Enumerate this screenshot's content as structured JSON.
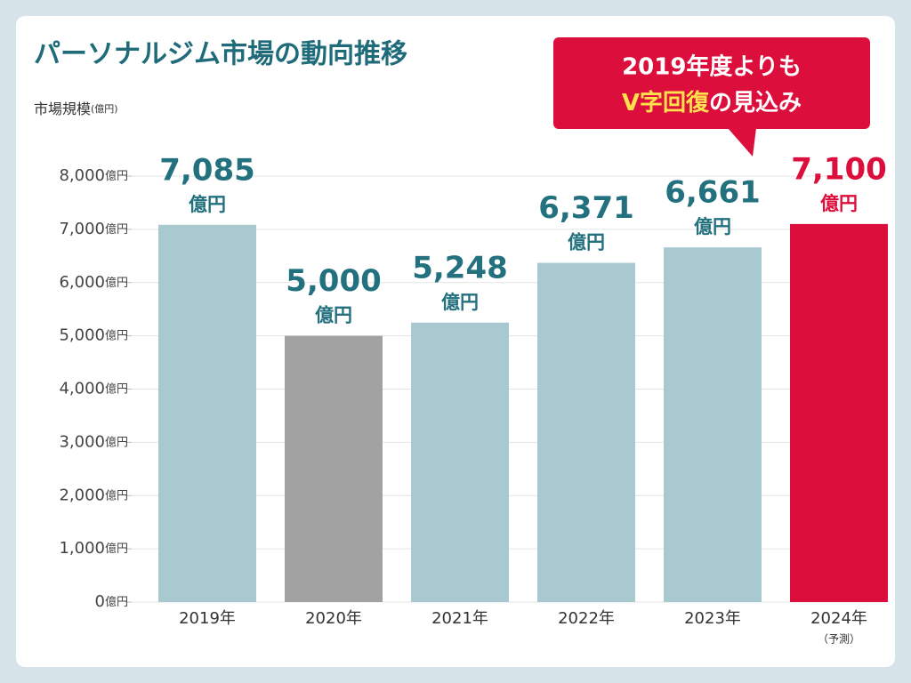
{
  "chart_data": {
    "type": "bar",
    "title": "パーソナルジム市場の動向推移",
    "y_label": "市場規模",
    "y_label_unit": "(億円)",
    "categories": [
      "2019年",
      "2020年",
      "2021年",
      "2022年",
      "2023年",
      "2024年"
    ],
    "category_notes": [
      null,
      null,
      null,
      null,
      null,
      "（予測）"
    ],
    "values": [
      7085,
      5000,
      5248,
      6371,
      6661,
      7100
    ],
    "value_labels": [
      "7,085",
      "5,000",
      "5,248",
      "6,371",
      "6,661",
      "7,100"
    ],
    "value_unit": "億円",
    "colors": [
      "#a9c9d1",
      "#a2a2a2",
      "#a9c9d1",
      "#a9c9d1",
      "#a9c9d1",
      "#dc0f3c"
    ],
    "label_colors": [
      "#23707f",
      "#23707f",
      "#23707f",
      "#23707f",
      "#23707f",
      "#dc0f3c"
    ],
    "ylim": [
      0,
      8000
    ],
    "yticks": [
      0,
      {
        "value": 1000,
        "label": "1,000"
      },
      {
        "value": 2000,
        "label": "2,000"
      },
      {
        "value": 3000,
        "label": "3,000"
      },
      {
        "value": 4000,
        "label": "4,000"
      },
      {
        "value": 5000,
        "label": "5,000"
      },
      {
        "value": 6000,
        "label": "6,000"
      },
      {
        "value": 7000,
        "label": "7,000"
      },
      {
        "value": 8000,
        "label": "8,000"
      }
    ],
    "tick_unit": "億円",
    "grid": true,
    "annotation": {
      "line1": "2019年度よりも",
      "highlight": "V字回復",
      "rest": "の見込み"
    }
  }
}
